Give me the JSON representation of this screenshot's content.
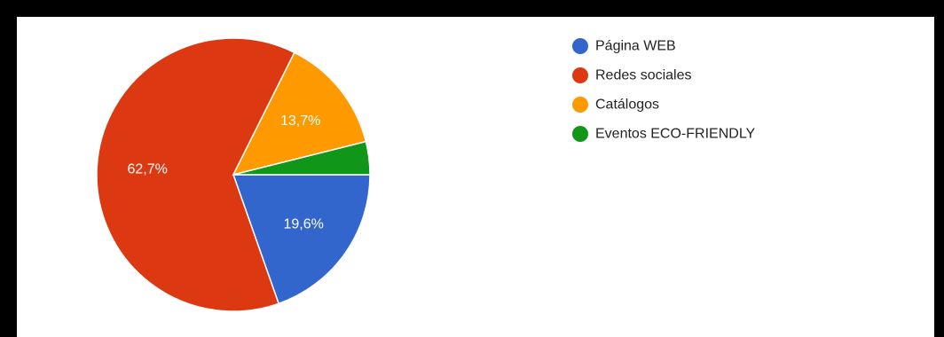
{
  "chart_data": {
    "type": "pie",
    "title": "",
    "slices": [
      {
        "name": "Página WEB",
        "value": 19.6,
        "label": "19,6%",
        "color": "#3366cc"
      },
      {
        "name": "Redes sociales",
        "value": 62.7,
        "label": "62,7%",
        "color": "#dc3912"
      },
      {
        "name": "Catálogos",
        "value": 13.7,
        "label": "13,7%",
        "color": "#ff9900"
      },
      {
        "name": "Eventos ECO-FRIENDLY",
        "value": 3.9,
        "label": "",
        "color": "#109618"
      }
    ],
    "legend_position": "right"
  }
}
